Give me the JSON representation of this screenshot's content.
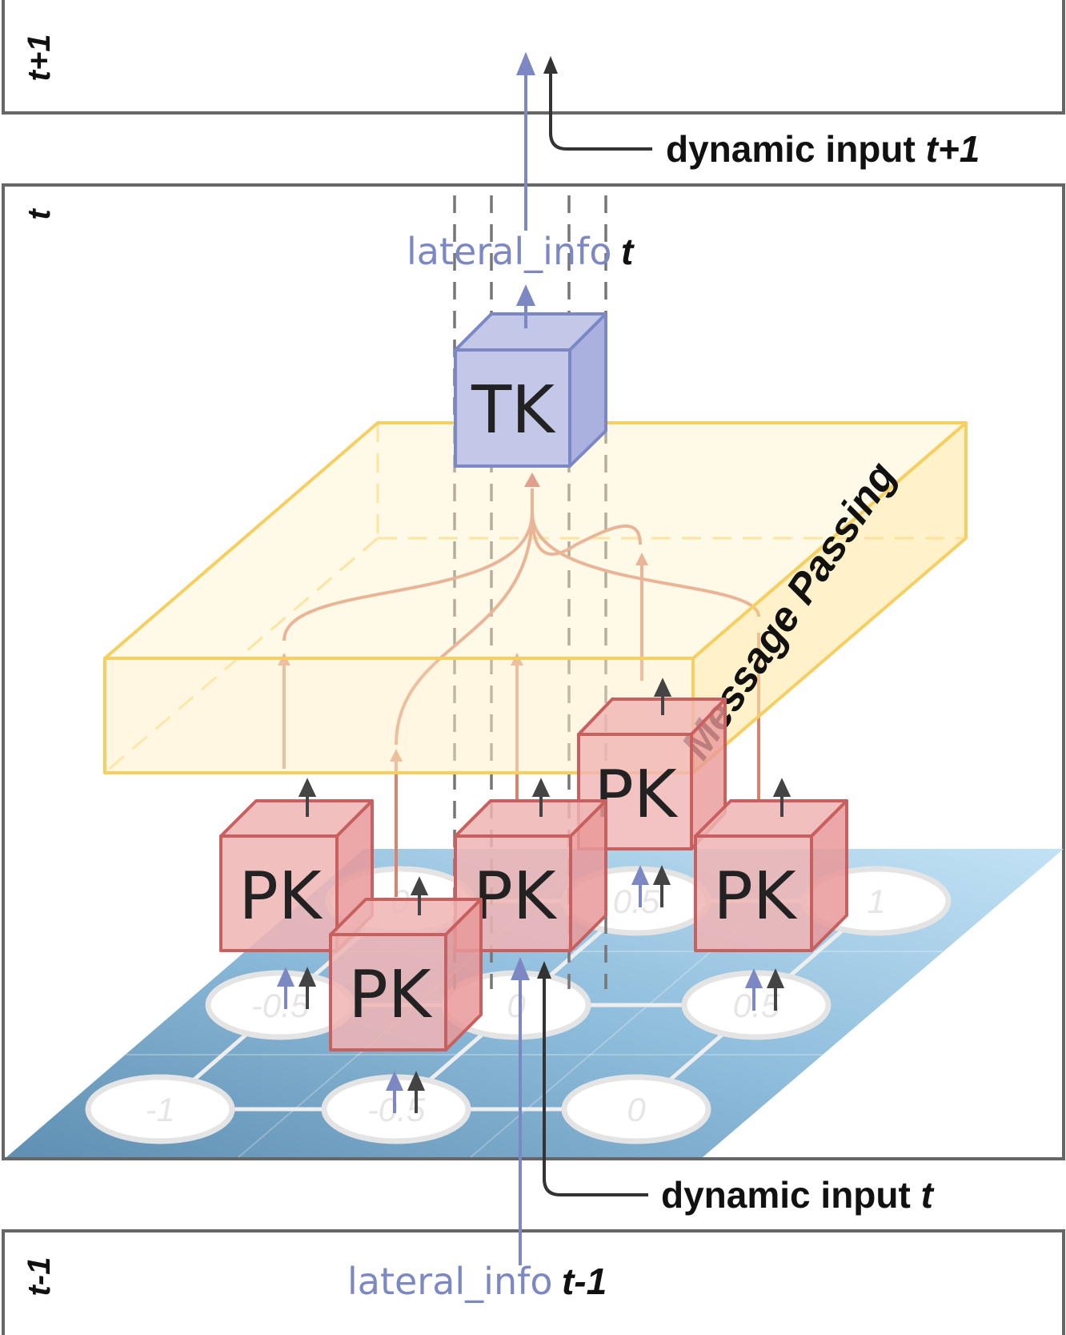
{
  "frames": {
    "next_label": "t+1",
    "current_label": "t",
    "prev_label": "t-1"
  },
  "labels": {
    "dynamic_input": "dynamic input",
    "dynamic_input_next_t": "t+1",
    "dynamic_input_cur_t": "t",
    "lateral_info": "lateral_info",
    "lateral_info_cur_t": "t",
    "lateral_info_prev_t": "t-1",
    "message_passing": "Message Passing"
  },
  "nodes": {
    "tk": "TK",
    "pk": "PK"
  },
  "grid_values": [
    "-1",
    "-0.5",
    "0",
    "-0.5",
    "0",
    "0.5",
    "0",
    "0.5",
    "1"
  ],
  "colors": {
    "frame": "#666666",
    "lateral": "#7b88c4",
    "dynamic": "#333333",
    "pk_fill": "#f0b4b4",
    "pk_stroke": "#c96060",
    "tk_fill": "#c3c8e8",
    "tk_stroke": "#7b88c4",
    "mp_fill": "#fff1c9",
    "mp_stroke": "#f7cf60",
    "grid_dark": "#5f8fb2",
    "grid_light": "#b9dcf1",
    "message": "#d9836e"
  }
}
